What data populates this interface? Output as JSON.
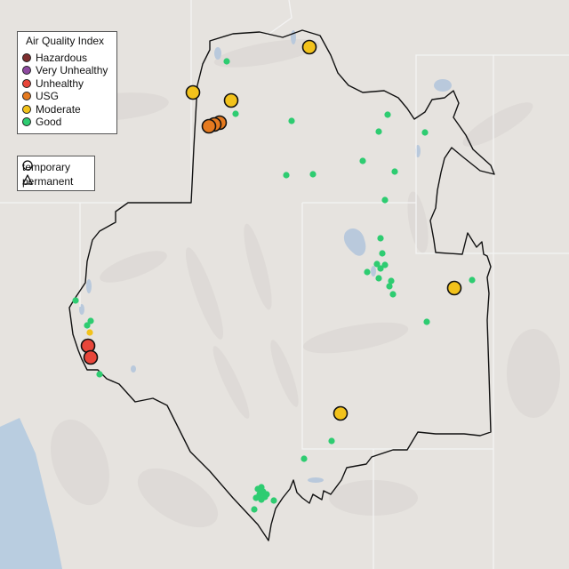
{
  "legend": {
    "title": "Air Quality Index",
    "categories": [
      {
        "label": "Hazardous",
        "color": "#7e2f2f"
      },
      {
        "label": "Very Unhealthy",
        "color": "#8e4aa0"
      },
      {
        "label": "Unhealthy",
        "color": "#e8463a"
      },
      {
        "label": "USG",
        "color": "#e57a1f"
      },
      {
        "label": "Moderate",
        "color": "#f2c21b"
      },
      {
        "label": "Good",
        "color": "#2ecc71"
      }
    ]
  },
  "monitor_types": {
    "temporary": "temporary",
    "permanent": "permanent"
  },
  "colors": {
    "background": "#e6e3df",
    "region_outline": "#111111",
    "state_lines": "#f4f4f4",
    "lakes": "#b9c9dc",
    "ocean": "#b9cde0"
  }
}
